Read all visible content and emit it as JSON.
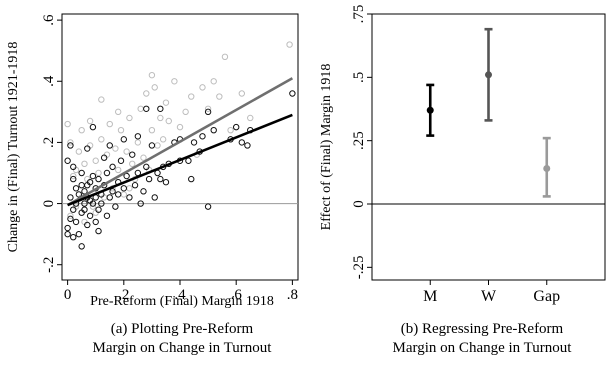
{
  "chart_data": [
    {
      "type": "scatter",
      "ylabel": "Change in (Final) Turnout 1921-1918",
      "xlabel": "Pre-Reform (Final) Margin 1918",
      "xlim": [
        -0.02,
        0.82
      ],
      "ylim": [
        -0.25,
        0.62
      ],
      "x_ticks": [
        {
          "value": 0,
          "label": "0"
        },
        {
          "value": 0.2,
          "label": ".2"
        },
        {
          "value": 0.4,
          "label": ".4"
        },
        {
          "value": 0.6,
          "label": ".6"
        },
        {
          "value": 0.8,
          "label": ".8"
        }
      ],
      "y_ticks": [
        {
          "value": -0.2,
          "label": "-.2"
        },
        {
          "value": 0,
          "label": "0"
        },
        {
          "value": 0.2,
          "label": ".2"
        },
        {
          "value": 0.4,
          "label": ".4"
        },
        {
          "value": 0.6,
          "label": ".6"
        }
      ],
      "reference_line_y": 0,
      "series": [
        {
          "marker": "hollow-circle",
          "color": "#111111",
          "points": [
            [
              0.0,
              -0.08
            ],
            [
              0.0,
              -0.1
            ],
            [
              0.01,
              -0.05
            ],
            [
              0.01,
              0.02
            ],
            [
              0.02,
              -0.02
            ],
            [
              0.02,
              0.08
            ],
            [
              0.0,
              0.14
            ],
            [
              0.02,
              0.12
            ],
            [
              0.03,
              -0.06
            ],
            [
              0.03,
              0.0
            ],
            [
              0.03,
              0.05
            ],
            [
              0.04,
              -0.1
            ],
            [
              0.04,
              0.03
            ],
            [
              0.05,
              -0.03
            ],
            [
              0.05,
              0.06
            ],
            [
              0.05,
              0.1
            ],
            [
              0.06,
              -0.02
            ],
            [
              0.06,
              0.0
            ],
            [
              0.06,
              0.04
            ],
            [
              0.07,
              -0.07
            ],
            [
              0.07,
              0.02
            ],
            [
              0.07,
              0.06
            ],
            [
              0.08,
              -0.04
            ],
            [
              0.08,
              0.01
            ],
            [
              0.08,
              0.07
            ],
            [
              0.09,
              0.0
            ],
            [
              0.09,
              0.09
            ],
            [
              0.1,
              0.02
            ],
            [
              0.1,
              0.05
            ],
            [
              0.1,
              -0.06
            ],
            [
              0.11,
              -0.02
            ],
            [
              0.11,
              0.08
            ],
            [
              0.12,
              0.03
            ],
            [
              0.12,
              0.0
            ],
            [
              0.13,
              0.06
            ],
            [
              0.13,
              0.15
            ],
            [
              0.14,
              -0.04
            ],
            [
              0.14,
              0.1
            ],
            [
              0.15,
              0.02
            ],
            [
              0.16,
              0.04
            ],
            [
              0.16,
              0.12
            ],
            [
              0.17,
              -0.01
            ],
            [
              0.18,
              0.07
            ],
            [
              0.18,
              0.03
            ],
            [
              0.19,
              0.14
            ],
            [
              0.2,
              0.05
            ],
            [
              0.21,
              0.09
            ],
            [
              0.22,
              0.02
            ],
            [
              0.23,
              0.16
            ],
            [
              0.24,
              0.06
            ],
            [
              0.25,
              0.1
            ],
            [
              0.26,
              0.0
            ],
            [
              0.27,
              0.04
            ],
            [
              0.28,
              0.12
            ],
            [
              0.29,
              0.08
            ],
            [
              0.3,
              0.19
            ],
            [
              0.31,
              0.02
            ],
            [
              0.32,
              0.1
            ],
            [
              0.33,
              0.08
            ],
            [
              0.34,
              0.12
            ],
            [
              0.35,
              0.07
            ],
            [
              0.36,
              0.13
            ],
            [
              0.38,
              0.2
            ],
            [
              0.4,
              0.14
            ],
            [
              0.44,
              0.08
            ],
            [
              0.45,
              0.2
            ],
            [
              0.47,
              0.17
            ],
            [
              0.48,
              0.22
            ],
            [
              0.5,
              -0.01
            ],
            [
              0.52,
              0.24
            ],
            [
              0.58,
              0.21
            ],
            [
              0.6,
              0.25
            ],
            [
              0.62,
              0.2
            ],
            [
              0.64,
              0.19
            ],
            [
              0.65,
              0.24
            ],
            [
              0.8,
              0.36
            ],
            [
              0.01,
              0.19
            ],
            [
              0.02,
              -0.11
            ],
            [
              0.05,
              -0.14
            ],
            [
              0.07,
              0.18
            ],
            [
              0.09,
              0.25
            ],
            [
              0.11,
              -0.09
            ],
            [
              0.15,
              0.19
            ],
            [
              0.2,
              0.21
            ],
            [
              0.25,
              0.22
            ],
            [
              0.28,
              0.31
            ],
            [
              0.33,
              0.31
            ],
            [
              0.4,
              0.21
            ],
            [
              0.43,
              0.14
            ],
            [
              0.5,
              0.3
            ]
          ]
        },
        {
          "marker": "hollow-circle",
          "color": "#bdbdbd",
          "points": [
            [
              0.0,
              0.26
            ],
            [
              0.01,
              0.2
            ],
            [
              0.02,
              0.09
            ],
            [
              0.03,
              -0.01
            ],
            [
              0.04,
              0.17
            ],
            [
              0.05,
              0.02
            ],
            [
              0.06,
              0.13
            ],
            [
              0.07,
              0.08
            ],
            [
              0.08,
              0.19
            ],
            [
              0.09,
              -0.01
            ],
            [
              0.1,
              0.14
            ],
            [
              0.11,
              0.1
            ],
            [
              0.12,
              0.21
            ],
            [
              0.13,
              0.02
            ],
            [
              0.14,
              0.16
            ],
            [
              0.15,
              0.26
            ],
            [
              0.16,
              0.05
            ],
            [
              0.17,
              0.18
            ],
            [
              0.18,
              0.11
            ],
            [
              0.19,
              0.24
            ],
            [
              0.2,
              0.03
            ],
            [
              0.21,
              0.17
            ],
            [
              0.22,
              0.28
            ],
            [
              0.23,
              0.13
            ],
            [
              0.24,
              0.08
            ],
            [
              0.25,
              0.2
            ],
            [
              0.26,
              0.31
            ],
            [
              0.27,
              0.15
            ],
            [
              0.28,
              0.36
            ],
            [
              0.29,
              0.11
            ],
            [
              0.3,
              0.24
            ],
            [
              0.31,
              0.38
            ],
            [
              0.32,
              0.19
            ],
            [
              0.33,
              0.28
            ],
            [
              0.34,
              0.21
            ],
            [
              0.35,
              0.33
            ],
            [
              0.36,
              0.27
            ],
            [
              0.38,
              0.4
            ],
            [
              0.4,
              0.25
            ],
            [
              0.42,
              0.3
            ],
            [
              0.44,
              0.35
            ],
            [
              0.46,
              0.16
            ],
            [
              0.48,
              0.38
            ],
            [
              0.5,
              0.31
            ],
            [
              0.52,
              0.4
            ],
            [
              0.54,
              0.35
            ],
            [
              0.56,
              0.48
            ],
            [
              0.58,
              0.24
            ],
            [
              0.62,
              0.36
            ],
            [
              0.65,
              0.28
            ],
            [
              0.79,
              0.52
            ],
            [
              0.12,
              0.34
            ],
            [
              0.18,
              0.3
            ],
            [
              0.05,
              0.24
            ],
            [
              0.08,
              0.27
            ],
            [
              0.01,
              -0.04
            ],
            [
              0.03,
              0.11
            ],
            [
              0.06,
              -0.06
            ],
            [
              0.1,
              -0.03
            ],
            [
              0.22,
              0.05
            ],
            [
              0.3,
              0.42
            ]
          ]
        }
      ],
      "fit_lines": [
        {
          "color": "#6f6f6f",
          "x": [
            0,
            0.8
          ],
          "y": [
            -0.005,
            0.41
          ]
        },
        {
          "color": "#000000",
          "x": [
            0,
            0.8
          ],
          "y": [
            -0.005,
            0.29
          ]
        }
      ],
      "caption": [
        "(a) Plotting Pre-Reform",
        "Margin on Change in Turnout"
      ]
    },
    {
      "type": "errorbar",
      "ylabel": "Effect of (Final) Margin 1918",
      "categories": [
        "M",
        "W",
        "Gap"
      ],
      "values": [
        0.37,
        0.51,
        0.14
      ],
      "ci_low": [
        0.27,
        0.33,
        0.03
      ],
      "ci_high": [
        0.47,
        0.69,
        0.26
      ],
      "colors": [
        "#000000",
        "#555555",
        "#9a9a9a"
      ],
      "ylim": [
        -0.3,
        0.75
      ],
      "y_ticks": [
        {
          "value": -0.25,
          "label": "-.25"
        },
        {
          "value": 0,
          "label": "0"
        },
        {
          "value": 0.25,
          "label": ".25"
        },
        {
          "value": 0.5,
          "label": ".5"
        },
        {
          "value": 0.75,
          "label": ".75"
        }
      ],
      "reference_line_y": 0,
      "caption": [
        "(b) Regressing Pre-Reform",
        "Margin on Change in Turnout"
      ]
    }
  ]
}
